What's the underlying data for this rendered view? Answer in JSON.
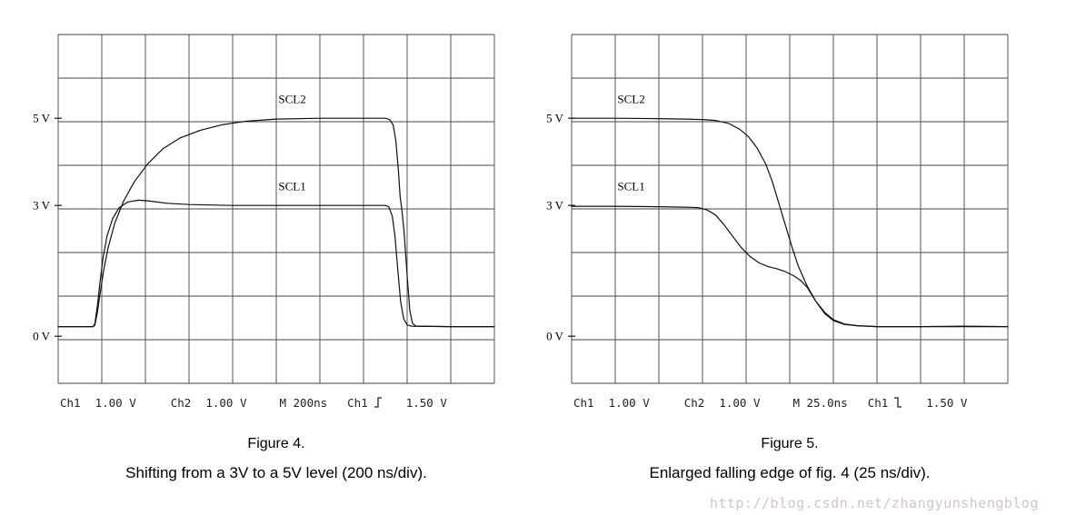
{
  "watermark": "http://blog.csdn.net/zhangyunshengblog",
  "figures": [
    {
      "figure_label": "Figure 4.",
      "caption": "Shifting from a 3V to a 5V level (200 ns/div).",
      "readout": {
        "ch1_label": "Ch1",
        "ch1_scale": "1.00 V",
        "ch2_label": "Ch2",
        "ch2_scale": "1.00 V",
        "timebase": "M  200ns",
        "trigger_source": "Ch1",
        "trigger_slope": "rising",
        "trigger_level": "1.50 V"
      },
      "chart": {
        "type": "line",
        "x_divisions": 10,
        "y_divisions": 8,
        "time_per_div": "200 ns",
        "volts_per_div": 1,
        "zero_offset_div": 1.08,
        "grid": true,
        "y_ticks": [
          {
            "label": "5 V",
            "volts": 5
          },
          {
            "label": "3 V",
            "volts": 3
          },
          {
            "label": "0 V",
            "volts": 0
          }
        ],
        "series": [
          {
            "name": "SCL2",
            "label_at": [
              5.05,
              5.35
            ],
            "points": [
              [
                0,
                0.22
              ],
              [
                0.8,
                0.22
              ],
              [
                0.84,
                0.25
              ],
              [
                0.9,
                0.55
              ],
              [
                0.97,
                1.05
              ],
              [
                1.05,
                1.55
              ],
              [
                1.15,
                2.05
              ],
              [
                1.3,
                2.6
              ],
              [
                1.5,
                3.1
              ],
              [
                1.75,
                3.55
              ],
              [
                2.05,
                3.95
              ],
              [
                2.4,
                4.3
              ],
              [
                2.8,
                4.55
              ],
              [
                3.25,
                4.72
              ],
              [
                3.75,
                4.85
              ],
              [
                4.3,
                4.93
              ],
              [
                5.0,
                4.98
              ],
              [
                6.0,
                5.0
              ],
              [
                7.5,
                5.0
              ],
              [
                7.6,
                4.97
              ],
              [
                7.68,
                4.85
              ],
              [
                7.74,
                4.5
              ],
              [
                7.8,
                3.8
              ],
              [
                7.84,
                3.2
              ],
              [
                7.88,
                2.9
              ],
              [
                7.93,
                2.4
              ],
              [
                8.0,
                1.4
              ],
              [
                8.06,
                0.6
              ],
              [
                8.12,
                0.3
              ],
              [
                8.2,
                0.23
              ],
              [
                9.0,
                0.22
              ],
              [
                10,
                0.22
              ]
            ]
          },
          {
            "name": "SCL1",
            "label_at": [
              5.05,
              3.35
            ],
            "points": [
              [
                0,
                0.22
              ],
              [
                0.8,
                0.22
              ],
              [
                0.84,
                0.28
              ],
              [
                0.9,
                0.7
              ],
              [
                0.96,
                1.25
              ],
              [
                1.03,
                1.8
              ],
              [
                1.12,
                2.3
              ],
              [
                1.25,
                2.7
              ],
              [
                1.4,
                2.95
              ],
              [
                1.6,
                3.08
              ],
              [
                1.85,
                3.12
              ],
              [
                2.1,
                3.1
              ],
              [
                2.5,
                3.05
              ],
              [
                3.0,
                3.02
              ],
              [
                4.0,
                3.0
              ],
              [
                7.5,
                3.0
              ],
              [
                7.58,
                2.97
              ],
              [
                7.66,
                2.75
              ],
              [
                7.72,
                2.3
              ],
              [
                7.78,
                1.6
              ],
              [
                7.85,
                0.8
              ],
              [
                7.92,
                0.4
              ],
              [
                8.0,
                0.26
              ],
              [
                8.1,
                0.23
              ],
              [
                9.0,
                0.22
              ],
              [
                10,
                0.22
              ]
            ]
          }
        ]
      }
    },
    {
      "figure_label": "Figure 5.",
      "caption": "Enlarged falling edge of fig. 4 (25 ns/div).",
      "readout": {
        "ch1_label": "Ch1",
        "ch1_scale": "1.00 V",
        "ch2_label": "Ch2",
        "ch2_scale": "1.00 V",
        "timebase": "M 25.0ns",
        "trigger_source": "Ch1",
        "trigger_slope": "falling",
        "trigger_level": "1.50 V"
      },
      "chart": {
        "type": "line",
        "x_divisions": 10,
        "y_divisions": 8,
        "time_per_div": "25 ns",
        "volts_per_div": 1,
        "zero_offset_div": 1.08,
        "grid": true,
        "y_ticks": [
          {
            "label": "5 V",
            "volts": 5
          },
          {
            "label": "3 V",
            "volts": 3
          },
          {
            "label": "0 V",
            "volts": 0
          }
        ],
        "series": [
          {
            "name": "SCL2",
            "label_at": [
              1.05,
              5.35
            ],
            "points": [
              [
                0,
                5.0
              ],
              [
                1.0,
                5.0
              ],
              [
                2.0,
                4.99
              ],
              [
                2.6,
                4.98
              ],
              [
                3.0,
                4.97
              ],
              [
                3.3,
                4.95
              ],
              [
                3.6,
                4.88
              ],
              [
                3.85,
                4.75
              ],
              [
                4.05,
                4.58
              ],
              [
                4.25,
                4.32
              ],
              [
                4.45,
                3.95
              ],
              [
                4.6,
                3.55
              ],
              [
                4.75,
                3.05
              ],
              [
                4.9,
                2.55
              ],
              [
                5.05,
                2.05
              ],
              [
                5.2,
                1.6
              ],
              [
                5.4,
                1.15
              ],
              [
                5.6,
                0.8
              ],
              [
                5.8,
                0.55
              ],
              [
                6.0,
                0.38
              ],
              [
                6.25,
                0.28
              ],
              [
                6.55,
                0.24
              ],
              [
                7.0,
                0.22
              ],
              [
                8.0,
                0.22
              ],
              [
                9.0,
                0.23
              ],
              [
                10,
                0.22
              ]
            ]
          },
          {
            "name": "SCL1",
            "label_at": [
              1.05,
              3.35
            ],
            "points": [
              [
                0,
                2.98
              ],
              [
                1.0,
                2.98
              ],
              [
                2.0,
                2.97
              ],
              [
                2.6,
                2.96
              ],
              [
                2.9,
                2.95
              ],
              [
                3.1,
                2.9
              ],
              [
                3.3,
                2.78
              ],
              [
                3.5,
                2.55
              ],
              [
                3.7,
                2.28
              ],
              [
                3.9,
                2.02
              ],
              [
                4.1,
                1.82
              ],
              [
                4.3,
                1.68
              ],
              [
                4.5,
                1.6
              ],
              [
                4.7,
                1.55
              ],
              [
                4.9,
                1.48
              ],
              [
                5.1,
                1.38
              ],
              [
                5.25,
                1.28
              ],
              [
                5.4,
                1.12
              ],
              [
                5.6,
                0.8
              ],
              [
                5.8,
                0.52
              ],
              [
                6.0,
                0.36
              ],
              [
                6.25,
                0.27
              ],
              [
                6.55,
                0.24
              ],
              [
                7.0,
                0.22
              ],
              [
                8.5,
                0.22
              ],
              [
                10,
                0.22
              ]
            ]
          }
        ]
      }
    }
  ]
}
